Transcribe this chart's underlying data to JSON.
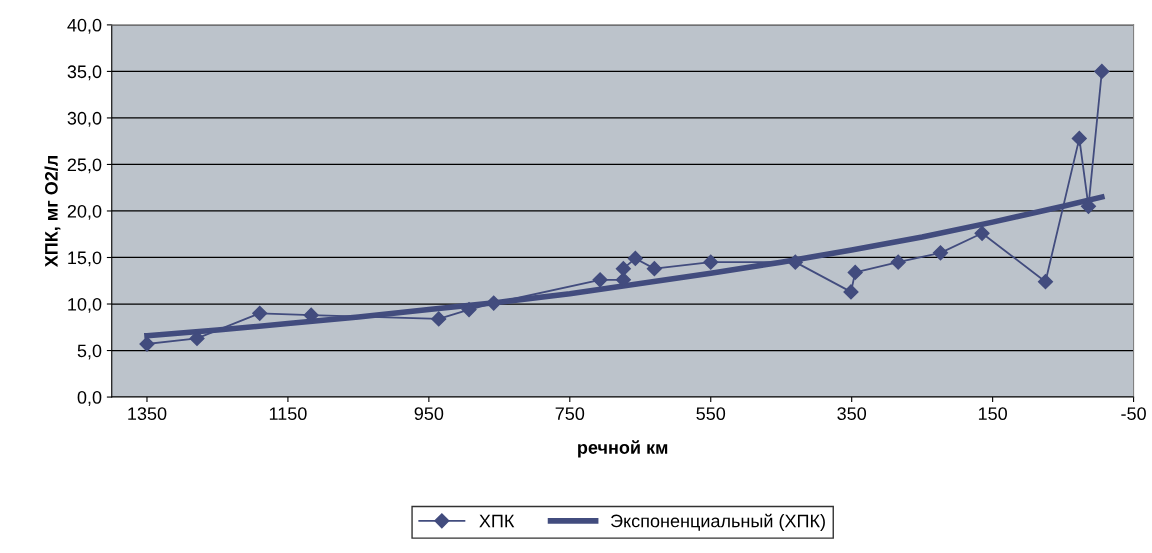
{
  "chart_data": {
    "type": "line",
    "xlabel": "речной км",
    "ylabel": "ХПК, мг О2/л",
    "xlim": [
      1400,
      -50
    ],
    "xticks": [
      1350,
      1150,
      950,
      750,
      550,
      350,
      150,
      -50
    ],
    "ylim": [
      0,
      40
    ],
    "yticks": [
      {
        "value": 0,
        "label": "0,0"
      },
      {
        "value": 5,
        "label": "5,0"
      },
      {
        "value": 10,
        "label": "10,0"
      },
      {
        "value": 15,
        "label": "15,0"
      },
      {
        "value": 20,
        "label": "20,0"
      },
      {
        "value": 25,
        "label": "25,0"
      },
      {
        "value": 30,
        "label": "30,0"
      },
      {
        "value": 35,
        "label": "35,0"
      },
      {
        "value": 40,
        "label": "40,0"
      }
    ],
    "grid": "y",
    "legend": "bottom",
    "series": [
      {
        "name": "ХПК",
        "color": "#424c7e",
        "marker": "diamond",
        "line_style": "solid",
        "x": [
          1350,
          1279,
          1190,
          1117,
          936,
          893,
          858,
          707,
          674,
          674,
          657,
          630,
          550,
          430,
          351,
          345,
          284,
          224,
          165,
          75,
          27,
          14,
          -5
        ],
        "values": [
          5.7,
          6.3,
          9.0,
          8.8,
          8.4,
          9.4,
          10.1,
          12.6,
          12.6,
          13.8,
          14.9,
          13.8,
          14.5,
          14.5,
          11.3,
          13.4,
          14.5,
          15.5,
          17.6,
          12.4,
          27.8,
          20.5,
          35.0
        ]
      },
      {
        "name": "Экспоненциальный (ХПК)",
        "color": "#424c7e",
        "marker": "none",
        "line_style": "solid",
        "x": [
          1350,
          1250,
          1150,
          1050,
          950,
          850,
          750,
          650,
          550,
          450,
          350,
          250,
          150,
          50,
          -5
        ],
        "values": [
          6.6,
          7.2,
          7.9,
          8.6,
          9.4,
          10.2,
          11.1,
          12.2,
          13.3,
          14.5,
          15.8,
          17.2,
          18.8,
          20.5,
          21.5
        ]
      }
    ]
  }
}
